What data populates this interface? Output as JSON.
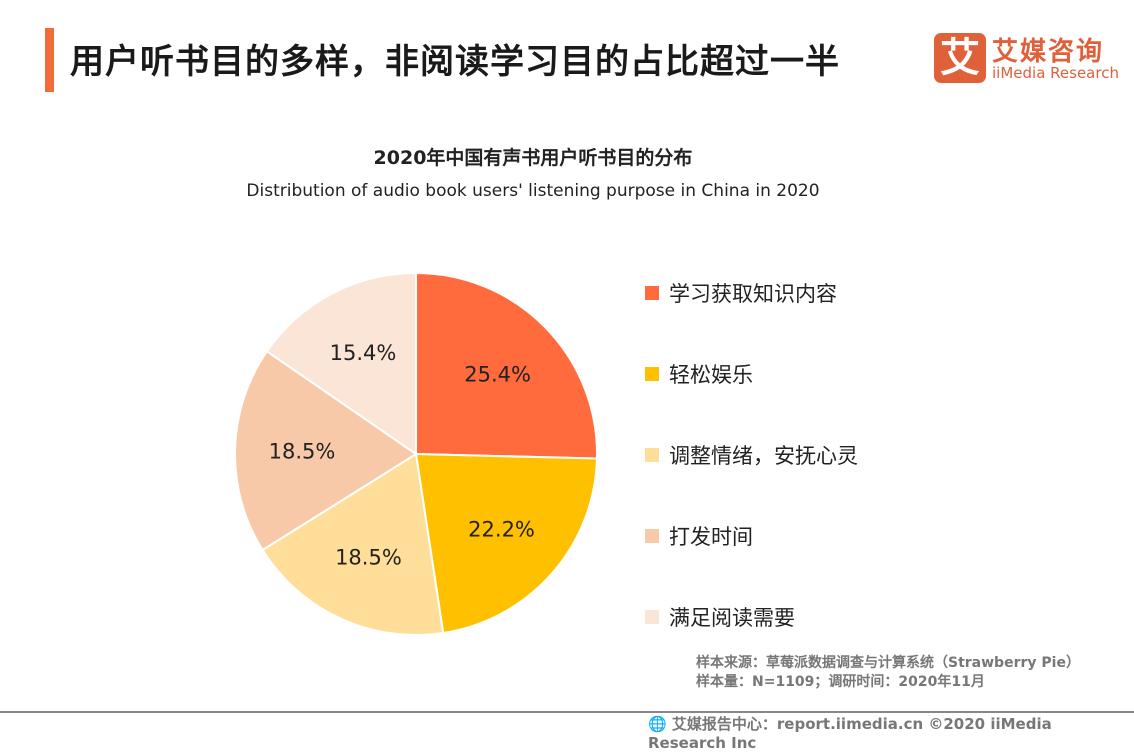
{
  "header": {
    "title": "用户听书目的多样，非阅读学习目的占比超过一半",
    "accent": "#F26B3A"
  },
  "logo": {
    "mark": "艾",
    "cn": "艾媒咨询",
    "en": "iiMedia Research"
  },
  "chart_data": {
    "type": "pie",
    "title": "2020年中国有声书用户听书目的分布",
    "subtitle": "Distribution of audio book users' listening purpose in China in 2020",
    "categories": [
      "学习获取知识内容",
      "轻松娱乐",
      "调整情绪，安抚心灵",
      "打发时间",
      "满足阅读需要"
    ],
    "values": [
      25.4,
      22.2,
      18.5,
      18.5,
      15.4
    ],
    "labels": [
      "25.4%",
      "22.2%",
      "18.5%",
      "18.5%",
      "15.4%"
    ],
    "colors": [
      "#FF6B3D",
      "#FFC000",
      "#FFDE9A",
      "#F8C9A8",
      "#FBE5D6"
    ],
    "legend": "right",
    "start": "top, clockwise"
  },
  "source": {
    "line1": "样本来源：草莓派数据调查与计算系统（Strawberry Pie）",
    "line2": "样本量：N=1109；调研时间：2020年11月"
  },
  "footer": {
    "text": "艾媒报告中心：report.iimedia.cn   ©2020 iiMedia Research Inc"
  }
}
